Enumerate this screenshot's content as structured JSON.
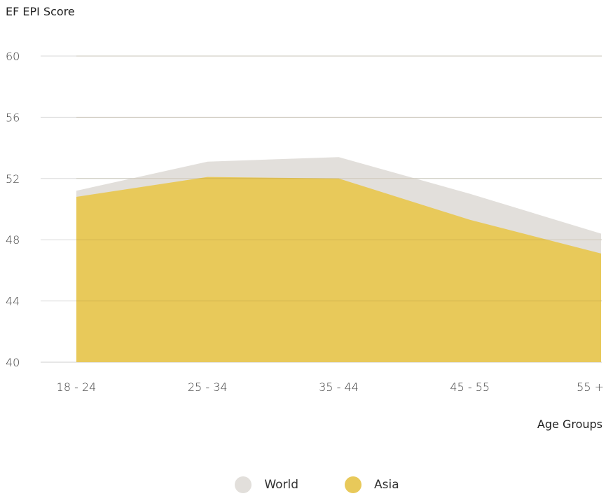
{
  "chart_data": {
    "type": "area",
    "title": "",
    "ylabel": "EF EPI Score",
    "xlabel": "Age Groups",
    "categories": [
      "18 - 24",
      "25 - 34",
      "35 - 44",
      "45 - 55",
      "55 +"
    ],
    "ylim": [
      40,
      60
    ],
    "yticks": [
      40,
      44,
      48,
      52,
      56,
      60
    ],
    "grid": true,
    "legend_position": "bottom-center",
    "series": [
      {
        "name": "World",
        "values": [
          51.2,
          53.1,
          53.4,
          51.0,
          48.4
        ],
        "color": "#e2dfdb"
      },
      {
        "name": "Asia",
        "values": [
          50.8,
          52.1,
          52.0,
          49.3,
          47.1
        ],
        "color": "#e8c95a"
      }
    ]
  }
}
